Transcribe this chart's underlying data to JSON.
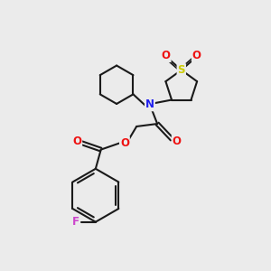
{
  "bg_color": "#ebebeb",
  "bond_color": "#1a1a1a",
  "N_color": "#2020ee",
  "O_color": "#ee1111",
  "S_color": "#cccc00",
  "F_color": "#cc44cc",
  "line_width": 1.5,
  "font_size": 8.5,
  "fig_size": [
    3.0,
    3.0
  ],
  "dpi": 100,
  "xlim": [
    0,
    10
  ],
  "ylim": [
    0,
    10
  ]
}
